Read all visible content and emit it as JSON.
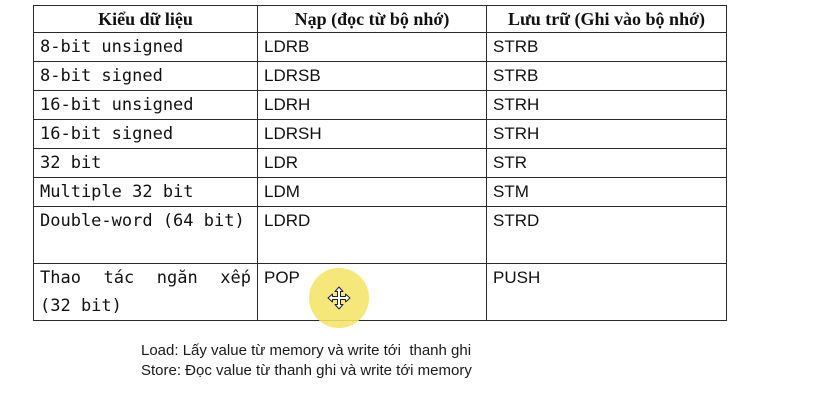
{
  "table": {
    "headers": {
      "data_type": "Kiểu dữ liệu",
      "load": "Nạp (đọc từ bộ nhớ)",
      "store": "Lưu trữ (Ghi vào bộ nhớ)"
    },
    "rows": [
      {
        "type": "8-bit unsigned",
        "load": "LDRB",
        "store": "STRB"
      },
      {
        "type": "8-bit signed",
        "load": "LDRSB",
        "store": "STRB"
      },
      {
        "type": "16-bit unsigned",
        "load": "LDRH",
        "store": "STRH"
      },
      {
        "type": "16-bit signed",
        "load": "LDRSH",
        "store": "STRH"
      },
      {
        "type": "32 bit",
        "load": "LDR",
        "store": "STR"
      },
      {
        "type": "Multiple 32 bit",
        "load": "LDM",
        "store": "STM"
      },
      {
        "type": "Double-word (64 bit)",
        "load": "LDRD",
        "store": "STRD"
      },
      {
        "type": "Thao tác ngăn xếp (32 bit)",
        "load": "POP",
        "store": "PUSH"
      }
    ]
  },
  "notes": {
    "load": "Load: Lấy value từ memory và write tới  thanh ghi",
    "store": "Store: Đọc value từ thanh ghi và write tới memory"
  },
  "cursor": {
    "icon": "move-icon",
    "highlight_color": "#f4e468"
  }
}
